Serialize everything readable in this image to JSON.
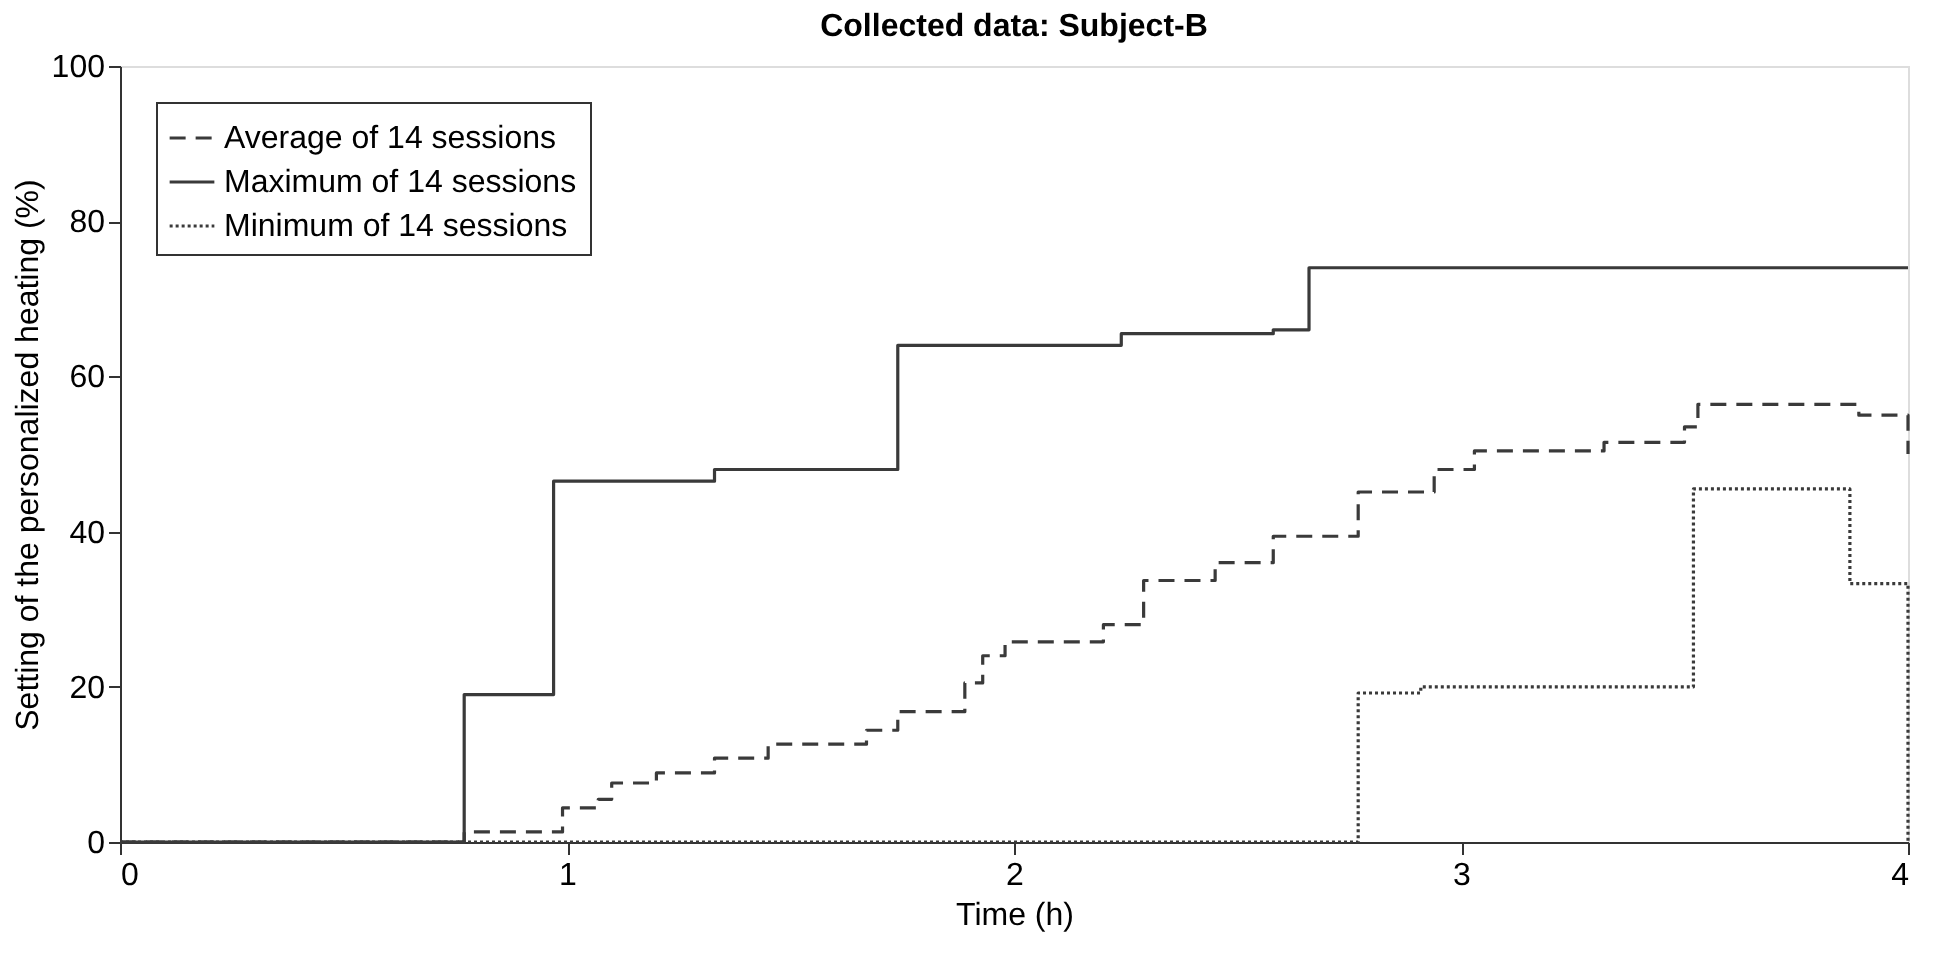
{
  "chart_data": {
    "type": "step",
    "title": "Collected data: Subject-B",
    "xlabel": "Time (h)",
    "ylabel": "Setting of the personalized heating (%)",
    "xlim": [
      0,
      4
    ],
    "xticks": [
      0,
      1,
      2,
      3,
      4
    ],
    "ylim": [
      0,
      100
    ],
    "yticks": [
      0,
      20,
      40,
      60,
      80,
      100
    ],
    "grid": false,
    "legend": "top left",
    "marker": "none",
    "series": [
      {
        "name": "Average of 14 sessions",
        "color": "#3a3a3a",
        "line_style": "dashed",
        "x": [
          0,
          0.77,
          0.99,
          1.07,
          1.1,
          1.2,
          1.33,
          1.45,
          1.67,
          1.74,
          1.89,
          1.93,
          1.98,
          2.2,
          2.29,
          2.45,
          2.58,
          2.77,
          2.94,
          3.03,
          3.32,
          3.5,
          3.53,
          3.89,
          4
        ],
        "values": [
          0,
          1.3,
          4.4,
          5.5,
          7.6,
          8.9,
          10.8,
          12.6,
          14.4,
          16.8,
          20.5,
          24,
          25.8,
          28,
          33.7,
          36,
          39.4,
          45.1,
          48,
          50.4,
          51.5,
          53.5,
          56.4,
          55,
          50
        ]
      },
      {
        "name": "Maximum of 14 sessions",
        "color": "#3a3a3a",
        "line_style": "solid",
        "x": [
          0,
          0.77,
          0.97,
          1.33,
          1.74,
          2.24,
          2.58,
          2.66,
          4
        ],
        "values": [
          0,
          19,
          46.5,
          48,
          64,
          65.5,
          66,
          74,
          74
        ]
      },
      {
        "name": "Minimum of 14 sessions",
        "color": "#3a3a3a",
        "line_style": "dotted",
        "x": [
          0,
          2.77,
          2.91,
          3.52,
          3.87,
          4
        ],
        "values": [
          0,
          19.2,
          20,
          45.5,
          33.3,
          0
        ]
      }
    ]
  }
}
